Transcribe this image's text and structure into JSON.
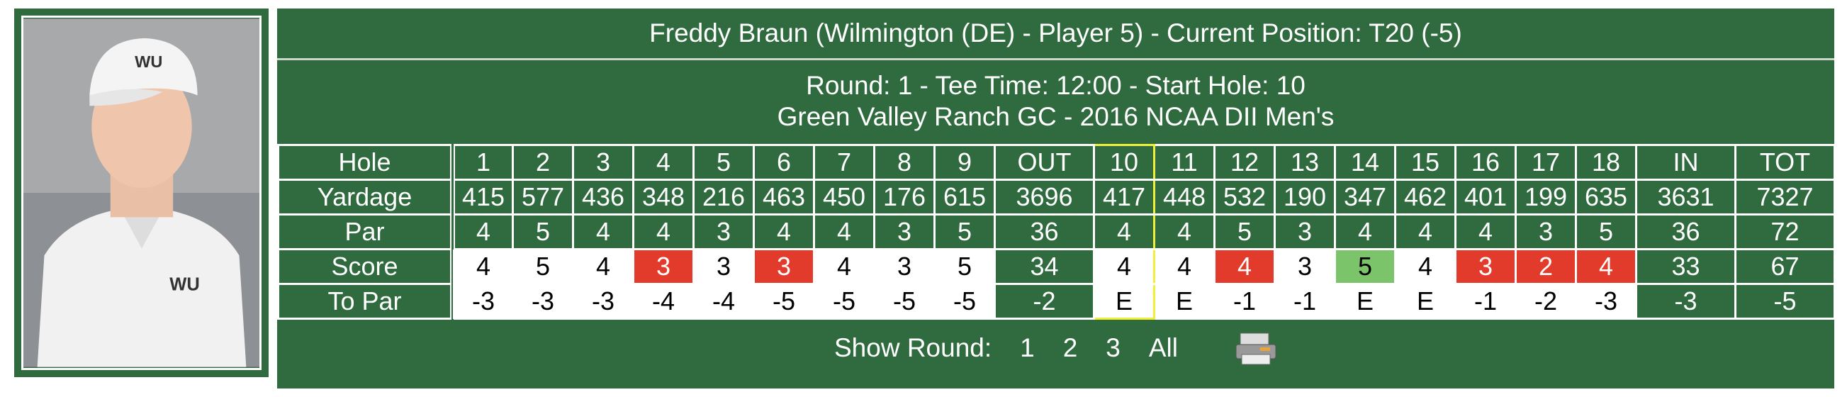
{
  "header": {
    "title": "Freddy Braun (Wilmington (DE) - Player 5) - Current Position: T20 (-5)",
    "round_line": "Round: 1 - Tee Time: 12:00 - Start Hole: 10",
    "course_line": "Green Valley Ranch GC - 2016 NCAA DII Men's"
  },
  "table": {
    "rows": [
      [
        "Hole",
        "1",
        "2",
        "3",
        "4",
        "5",
        "6",
        "7",
        "8",
        "9",
        "OUT",
        "10",
        "11",
        "12",
        "13",
        "14",
        "15",
        "16",
        "17",
        "18",
        "IN",
        "TOT"
      ],
      [
        "Yardage",
        "415",
        "577",
        "436",
        "348",
        "216",
        "463",
        "450",
        "176",
        "615",
        "3696",
        "417",
        "448",
        "532",
        "190",
        "347",
        "462",
        "401",
        "199",
        "635",
        "3631",
        "7327"
      ],
      [
        "Par",
        "4",
        "5",
        "4",
        "4",
        "3",
        "4",
        "4",
        "3",
        "5",
        "36",
        "4",
        "4",
        "5",
        "3",
        "4",
        "4",
        "4",
        "3",
        "5",
        "36",
        "72"
      ],
      [
        "Score",
        "4",
        "5",
        "4",
        "3",
        "3",
        "3",
        "4",
        "3",
        "5",
        "34",
        "4",
        "4",
        "4",
        "3",
        "5",
        "4",
        "3",
        "2",
        "4",
        "33",
        "67"
      ],
      [
        "To Par",
        "-3",
        "-3",
        "-3",
        "-4",
        "-4",
        "-5",
        "-5",
        "-5",
        "-5",
        "-2",
        "E",
        "E",
        "-1",
        "-1",
        "E",
        "E",
        "-1",
        "-2",
        "-3",
        "-3",
        "-5"
      ]
    ]
  },
  "footer": {
    "label": "Show Round:",
    "options": [
      "1",
      "2",
      "3",
      "All"
    ]
  }
}
